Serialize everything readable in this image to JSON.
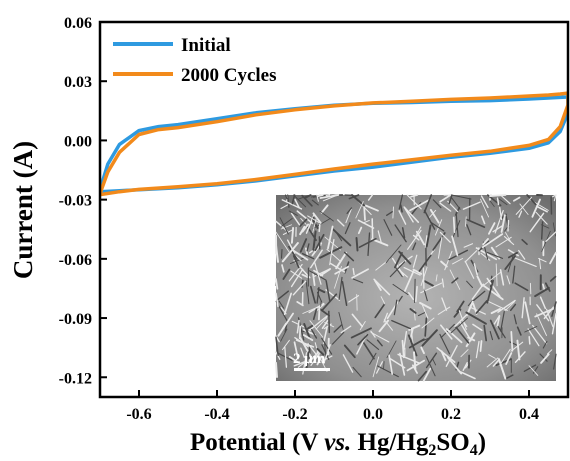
{
  "chart_data": {
    "type": "line",
    "title": "",
    "xlabel_parts": [
      "Potential (V ",
      "vs.",
      " Hg/Hg",
      "2",
      "SO",
      "4",
      ")"
    ],
    "ylabel": "Current (A)",
    "xlim": [
      -0.7,
      0.5
    ],
    "ylim": [
      -0.13,
      0.06
    ],
    "xticks": [
      -0.6,
      -0.4,
      -0.2,
      0.0,
      0.2,
      0.4
    ],
    "xtick_labels": [
      "-0.6",
      "-0.4",
      "-0.2",
      "0.0",
      "0.2",
      "0.4"
    ],
    "yticks": [
      0.06,
      0.03,
      0.0,
      -0.03,
      -0.06,
      -0.09,
      -0.12
    ],
    "ytick_labels": [
      "0.06",
      "0.03",
      "0.00",
      "-0.03",
      "-0.06",
      "-0.09",
      "-0.12"
    ],
    "legend_position": "top-left",
    "grid": false,
    "series": [
      {
        "name": "Initial",
        "color": "#2e9ae0",
        "x": [
          -0.7,
          -0.68,
          -0.65,
          -0.6,
          -0.55,
          -0.5,
          -0.4,
          -0.3,
          -0.2,
          -0.1,
          0.0,
          0.1,
          0.2,
          0.3,
          0.4,
          0.45,
          0.48,
          0.5,
          0.5,
          0.48,
          0.45,
          0.4,
          0.3,
          0.2,
          0.1,
          0.0,
          -0.1,
          -0.2,
          -0.3,
          -0.4,
          -0.5,
          -0.6,
          -0.65,
          -0.7,
          -0.7
        ],
        "y": [
          -0.025,
          -0.012,
          -0.002,
          0.005,
          0.007,
          0.008,
          0.011,
          0.014,
          0.016,
          0.0178,
          0.0188,
          0.0192,
          0.0198,
          0.0202,
          0.021,
          0.0215,
          0.0218,
          0.022,
          0.014,
          0.0045,
          -0.0012,
          -0.004,
          -0.0065,
          -0.0085,
          -0.011,
          -0.0135,
          -0.0155,
          -0.018,
          -0.0205,
          -0.0225,
          -0.024,
          -0.025,
          -0.0255,
          -0.026,
          -0.025
        ]
      },
      {
        "name": "2000 Cycles",
        "color": "#f28a1b",
        "x": [
          -0.7,
          -0.68,
          -0.65,
          -0.6,
          -0.55,
          -0.5,
          -0.4,
          -0.3,
          -0.2,
          -0.1,
          0.0,
          0.1,
          0.2,
          0.3,
          0.4,
          0.45,
          0.48,
          0.5,
          0.5,
          0.48,
          0.45,
          0.4,
          0.3,
          0.2,
          0.1,
          0.0,
          -0.1,
          -0.2,
          -0.3,
          -0.4,
          -0.5,
          -0.6,
          -0.65,
          -0.7,
          -0.7
        ],
        "y": [
          -0.027,
          -0.016,
          -0.006,
          0.003,
          0.0055,
          0.0065,
          0.0095,
          0.013,
          0.0155,
          0.0175,
          0.019,
          0.0198,
          0.0208,
          0.0215,
          0.0225,
          0.023,
          0.0235,
          0.024,
          0.018,
          0.007,
          0.0005,
          -0.0025,
          -0.0055,
          -0.0075,
          -0.0098,
          -0.012,
          -0.0145,
          -0.0172,
          -0.0198,
          -0.022,
          -0.0235,
          -0.0248,
          -0.026,
          -0.0275,
          -0.027
        ]
      }
    ],
    "inset": {
      "scale_bar_label": "2 μm"
    }
  }
}
